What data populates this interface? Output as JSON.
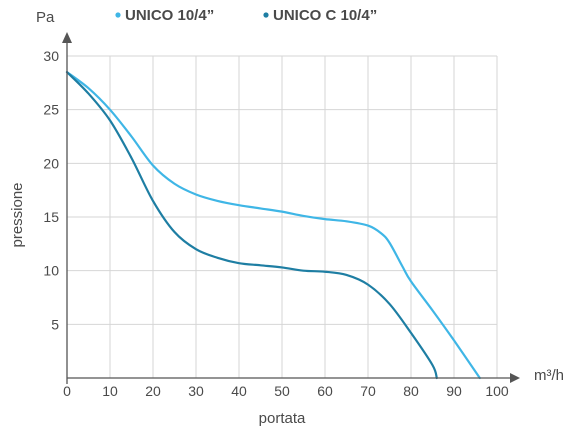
{
  "chart_data": {
    "type": "line",
    "xlabel": "portata",
    "ylabel": "pressione",
    "x_unit": "m³/h",
    "y_unit": "Pa",
    "xlim": [
      0,
      100
    ],
    "ylim": [
      0,
      30
    ],
    "x_ticks": [
      0,
      10,
      20,
      30,
      40,
      50,
      60,
      70,
      80,
      90,
      100
    ],
    "y_ticks": [
      5,
      10,
      15,
      20,
      25,
      30
    ],
    "grid": true,
    "legend_position": "top",
    "series": [
      {
        "name": "UNICO 10/4”",
        "color": "#3fb6e6",
        "x": [
          0,
          5,
          10,
          15,
          20,
          25,
          30,
          35,
          40,
          45,
          50,
          55,
          60,
          65,
          70,
          73,
          75,
          78,
          80,
          85,
          90,
          96
        ],
        "y": [
          28.5,
          27,
          25,
          22.5,
          19.8,
          18.1,
          17.1,
          16.5,
          16.1,
          15.8,
          15.5,
          15.1,
          14.8,
          14.6,
          14.2,
          13.5,
          12.6,
          10.4,
          9,
          6.3,
          3.5,
          0
        ]
      },
      {
        "name": "UNICO C 10/4”",
        "color": "#1e7ea3",
        "x": [
          0,
          5,
          10,
          15,
          20,
          25,
          30,
          35,
          40,
          45,
          50,
          55,
          60,
          65,
          70,
          75,
          80,
          85,
          86
        ],
        "y": [
          28.5,
          26.5,
          24,
          20.5,
          16.5,
          13.6,
          12,
          11.2,
          10.7,
          10.5,
          10.3,
          10,
          9.9,
          9.6,
          8.7,
          6.9,
          4.2,
          1.2,
          0
        ]
      }
    ]
  }
}
